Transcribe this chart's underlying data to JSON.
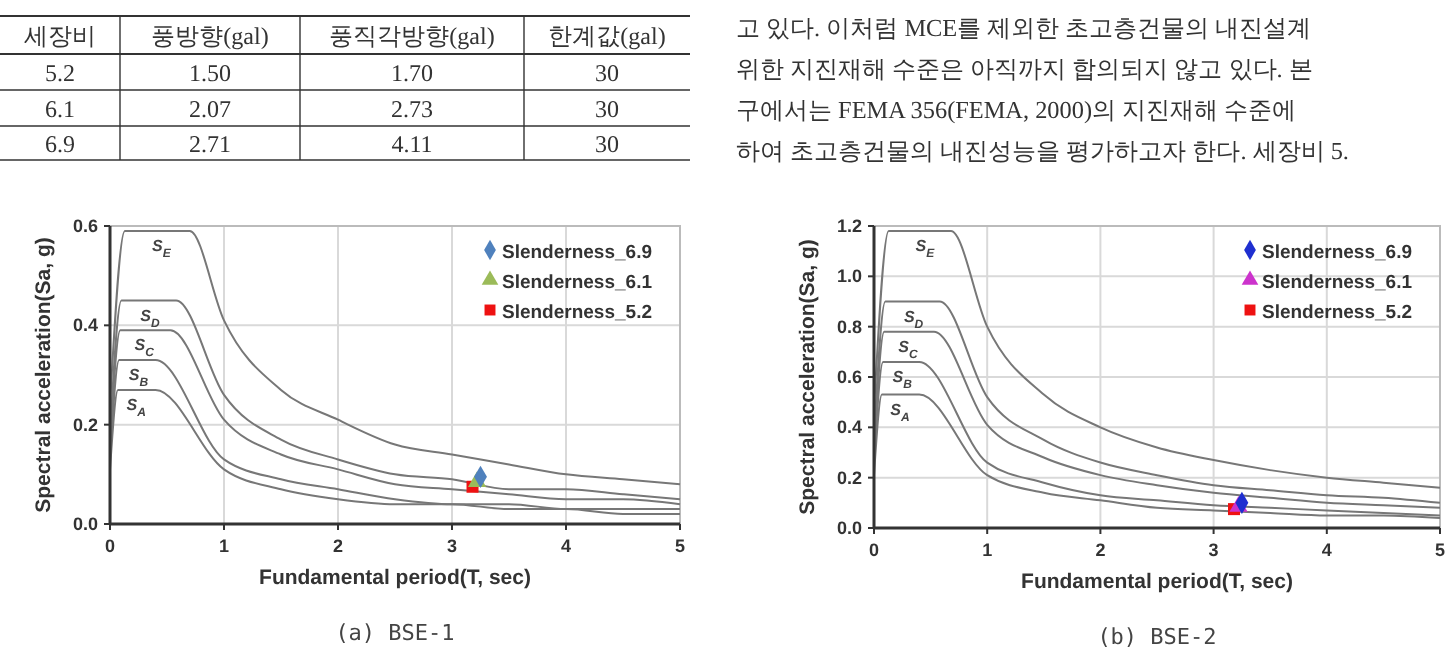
{
  "chart_data": [
    {
      "type": "other",
      "annotations": [
        "세장비",
        "풍방향(gal)",
        "풍직각방향(gal)",
        "한계값(gal)",
        "5.2",
        "1.50",
        "1.70",
        "30",
        "6.1",
        "2.07",
        "2.73",
        "30",
        "6.9",
        "2.71",
        "4.11",
        "30"
      ]
    },
    {
      "type": "other",
      "annotations": [
        "고 있다. 이처럼 MCE를 제외한 초고층건물의 내진설계",
        "위한 지진재해 수준은 아직까지 합의되지 않고 있다. 본",
        "구에서는 FEMA 356(FEMA, 2000)의 지진재해 수준에",
        "하여 초고층건물의 내진성능을 평가하고자 한다. 세장비 5."
      ]
    },
    {
      "type": "line",
      "xlabel": "Fundamental period(T, sec)",
      "ylabel": "Spectral acceleration(Sa, g)",
      "xlim": [
        0,
        5
      ],
      "ylim": [
        0,
        0.6
      ],
      "xticks": [
        0,
        1,
        2,
        3,
        4,
        5
      ],
      "yticks": [
        {
          "value": 0,
          "label": "0.0"
        },
        {
          "value": 0.2,
          "label": "0.2"
        },
        {
          "value": 0.4,
          "label": "0.4"
        },
        {
          "value": 0.6,
          "label": "0.6"
        }
      ],
      "grid": true,
      "legend": "top right",
      "line_style": "solid",
      "annotations": [
        {
          "text": "S$_{E}$",
          "x": 0.45,
          "y": 0.59
        },
        {
          "text": "S$_{D}$",
          "x": 0.35,
          "y": 0.45
        },
        {
          "text": "S$_{C}$",
          "x": 0.3,
          "y": 0.39
        },
        {
          "text": "S$_{B}$",
          "x": 0.25,
          "y": 0.33
        },
        {
          "text": "S$_{A}$",
          "x": 0.23,
          "y": 0.27
        },
        "(a) BSE-1"
      ],
      "series": [
        {
          "color": "#777777",
          "x": [
            0,
            0.13,
            0.7,
            1,
            1.5,
            2,
            2.5,
            3,
            3.5,
            4,
            4.5,
            5
          ],
          "values": [
            0.24,
            0.59,
            0.59,
            0.41,
            0.27,
            0.21,
            0.16,
            0.14,
            0.12,
            0.1,
            0.09,
            0.08
          ]
        },
        {
          "color": "#777777",
          "x": [
            0,
            0.1,
            0.58,
            1,
            1.5,
            2,
            2.5,
            3,
            3.5,
            4,
            4.5,
            5
          ],
          "values": [
            0.18,
            0.45,
            0.45,
            0.26,
            0.17,
            0.13,
            0.1,
            0.09,
            0.07,
            0.07,
            0.06,
            0.05
          ]
        },
        {
          "color": "#777777",
          "x": [
            0,
            0.09,
            0.53,
            1,
            1.5,
            2,
            2.5,
            3,
            3.5,
            4,
            4.5,
            5
          ],
          "values": [
            0.16,
            0.39,
            0.39,
            0.21,
            0.14,
            0.11,
            0.08,
            0.07,
            0.06,
            0.05,
            0.05,
            0.04
          ]
        },
        {
          "color": "#777777",
          "x": [
            0,
            0.08,
            0.4,
            1,
            1.5,
            2,
            2.5,
            3,
            3.5,
            4,
            4.5,
            5
          ],
          "values": [
            0.13,
            0.33,
            0.33,
            0.13,
            0.09,
            0.07,
            0.05,
            0.04,
            0.04,
            0.03,
            0.03,
            0.03
          ]
        },
        {
          "color": "#777777",
          "x": [
            0,
            0.07,
            0.4,
            1,
            1.5,
            2,
            2.5,
            3,
            3.5,
            4,
            4.5,
            5
          ],
          "values": [
            0.11,
            0.27,
            0.27,
            0.11,
            0.07,
            0.05,
            0.04,
            0.04,
            0.03,
            0.03,
            0.02,
            0.02
          ]
        },
        {
          "type": "scatter",
          "name": "Slenderness_6.9",
          "color": "#4f81bd",
          "marker": "diamond",
          "x": [
            3.25
          ],
          "values": [
            0.095
          ]
        },
        {
          "type": "scatter",
          "name": "Slenderness_6.1",
          "color": "#9bbb59",
          "marker": "triangle",
          "x": [
            3.22
          ],
          "values": [
            0.085
          ]
        },
        {
          "type": "scatter",
          "name": "Slenderness_5.2",
          "color": "#ee1111",
          "marker": "square",
          "x": [
            3.18
          ],
          "values": [
            0.075
          ]
        }
      ]
    },
    {
      "type": "line",
      "xlabel": "Fundamental period(T, sec)",
      "ylabel": "Spectral acceleration(Sa, g)",
      "xlim": [
        0,
        5
      ],
      "ylim": [
        0,
        1.2
      ],
      "xticks": [
        0,
        1,
        2,
        3,
        4,
        5
      ],
      "yticks": [
        {
          "value": 0,
          "label": "0.0"
        },
        {
          "value": 0.2,
          "label": "0.2"
        },
        {
          "value": 0.4,
          "label": "0.4"
        },
        {
          "value": 0.6,
          "label": "0.6"
        },
        {
          "value": 0.8,
          "label": "0.8"
        },
        {
          "value": 1,
          "label": "1.0"
        },
        {
          "value": 1.2,
          "label": "1.2"
        }
      ],
      "grid": true,
      "legend": "top right",
      "line_style": "solid",
      "annotations": [
        {
          "text": "S$_{E}$",
          "x": 0.45,
          "y": 1.18
        },
        {
          "text": "S$_{D}$",
          "x": 0.35,
          "y": 0.9
        },
        {
          "text": "S$_{C}$",
          "x": 0.3,
          "y": 0.78
        },
        {
          "text": "S$_{B}$",
          "x": 0.25,
          "y": 0.66
        },
        {
          "text": "S$_{A}$",
          "x": 0.23,
          "y": 0.53
        },
        "(b) BSE-2"
      ],
      "series": [
        {
          "color": "#777777",
          "x": [
            0,
            0.13,
            0.68,
            1,
            1.5,
            2,
            2.5,
            3,
            3.5,
            4,
            4.5,
            5
          ],
          "values": [
            0.47,
            1.18,
            1.18,
            0.8,
            0.53,
            0.4,
            0.32,
            0.27,
            0.23,
            0.2,
            0.18,
            0.16
          ]
        },
        {
          "color": "#777777",
          "x": [
            0,
            0.1,
            0.58,
            1,
            1.5,
            2,
            2.5,
            3,
            3.5,
            4,
            4.5,
            5
          ],
          "values": [
            0.36,
            0.9,
            0.9,
            0.52,
            0.35,
            0.26,
            0.21,
            0.17,
            0.15,
            0.13,
            0.12,
            0.1
          ]
        },
        {
          "color": "#777777",
          "x": [
            0,
            0.09,
            0.53,
            1,
            1.5,
            2,
            2.5,
            3,
            3.5,
            4,
            4.5,
            5
          ],
          "values": [
            0.31,
            0.78,
            0.78,
            0.41,
            0.28,
            0.21,
            0.17,
            0.14,
            0.12,
            0.1,
            0.09,
            0.08
          ]
        },
        {
          "color": "#777777",
          "x": [
            0,
            0.08,
            0.4,
            1,
            1.5,
            2,
            2.5,
            3,
            3.5,
            4,
            4.5,
            5
          ],
          "values": [
            0.26,
            0.66,
            0.66,
            0.26,
            0.18,
            0.13,
            0.11,
            0.09,
            0.08,
            0.07,
            0.06,
            0.05
          ]
        },
        {
          "color": "#777777",
          "x": [
            0,
            0.07,
            0.4,
            1,
            1.5,
            2,
            2.5,
            3,
            3.5,
            4,
            4.5,
            5
          ],
          "values": [
            0.21,
            0.53,
            0.53,
            0.21,
            0.14,
            0.11,
            0.08,
            0.07,
            0.06,
            0.05,
            0.05,
            0.04
          ]
        },
        {
          "type": "scatter",
          "name": "Slenderness_6.9",
          "color": "#1f2fd0",
          "marker": "diamond",
          "x": [
            3.25
          ],
          "values": [
            0.1
          ]
        },
        {
          "type": "scatter",
          "name": "Slenderness_6.1",
          "color": "#cc33cc",
          "marker": "triangle",
          "x": [
            3.22
          ],
          "values": [
            0.085
          ]
        },
        {
          "type": "scatter",
          "name": "Slenderness_5.2",
          "color": "#ee1111",
          "marker": "square",
          "x": [
            3.18
          ],
          "values": [
            0.075
          ]
        }
      ]
    }
  ]
}
